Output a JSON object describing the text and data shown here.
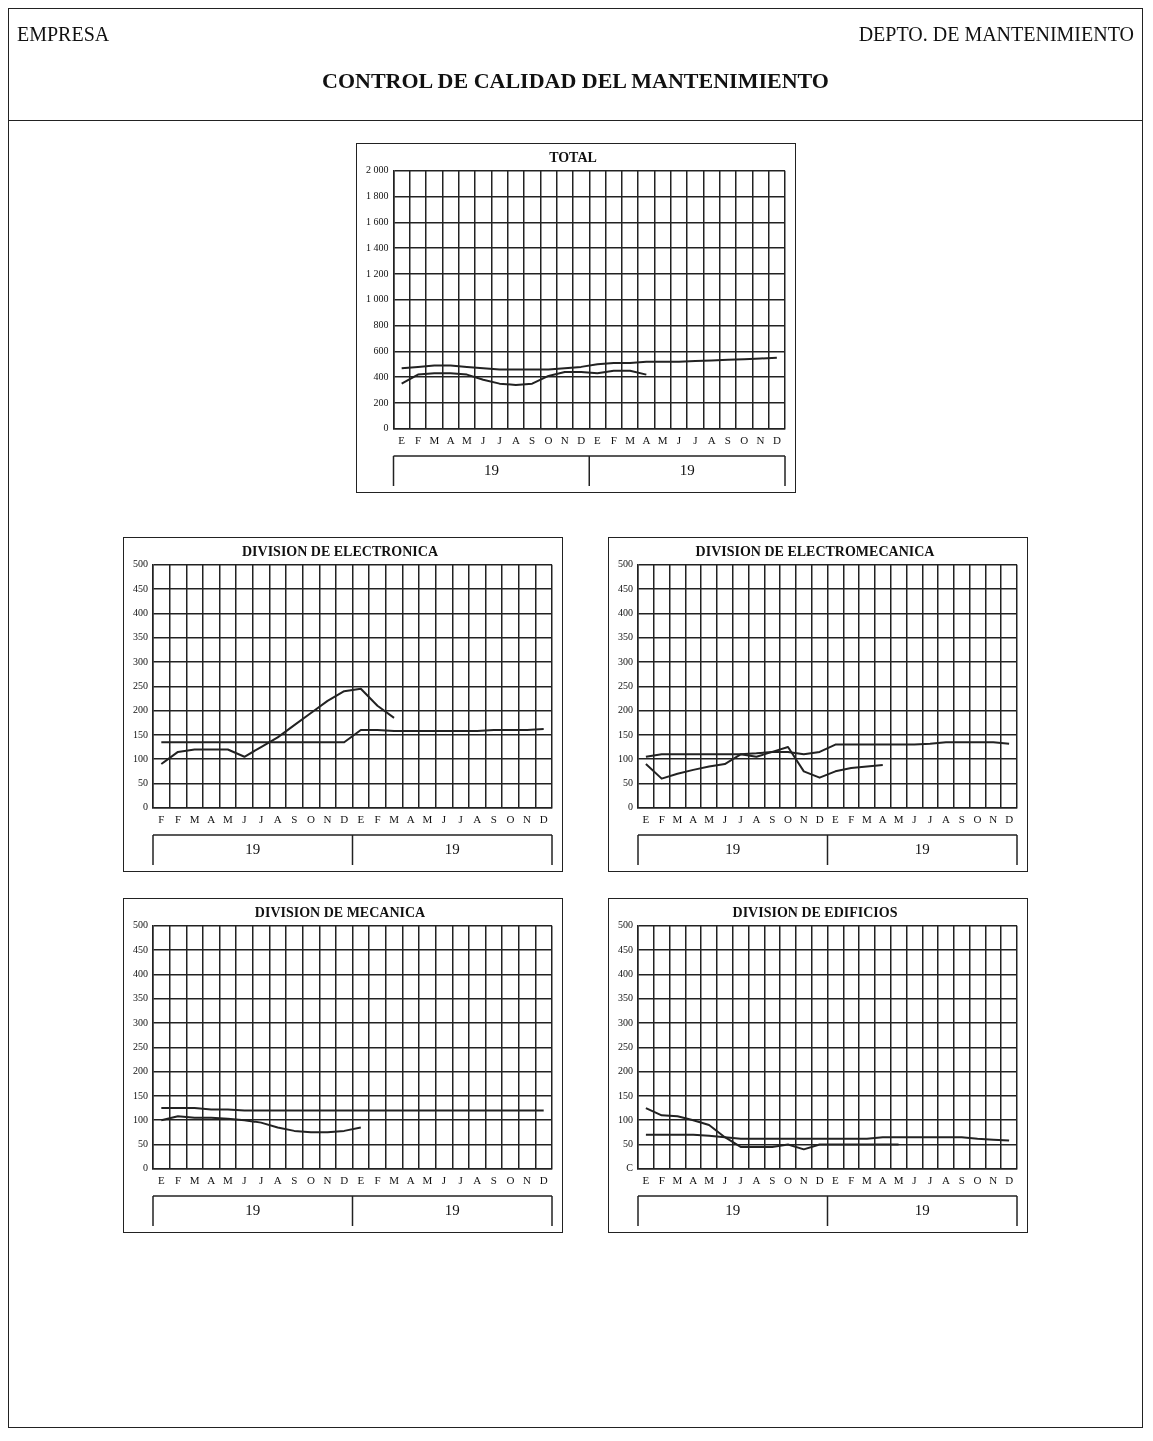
{
  "chart_data": [
    {
      "type": "other",
      "title": "CONTROL DE CALIDAD DEL MANTENIMIENTO",
      "annotations": [
        "EMPRESA",
        "DEPTO. DE MANTENIMIENTO"
      ]
    },
    {
      "type": "line",
      "title": "TOTAL",
      "categories": [
        "E",
        "F",
        "M",
        "A",
        "M",
        "J",
        "J",
        "A",
        "S",
        "O",
        "N",
        "D",
        "E",
        "F",
        "M",
        "A",
        "M",
        "J",
        "J",
        "A",
        "S",
        "O",
        "N",
        "D"
      ],
      "ylim": [
        0,
        2000
      ],
      "yticks": [
        0,
        200,
        400,
        600,
        800,
        {
          "value": 1000,
          "label": "1 000"
        },
        {
          "value": 1200,
          "label": "1 200"
        },
        {
          "value": 1400,
          "label": "1 400"
        },
        {
          "value": 1600,
          "label": "1 600"
        },
        {
          "value": 1800,
          "label": "1 800"
        },
        {
          "value": 2000,
          "label": "2 000"
        }
      ],
      "grid": true,
      "legend": false,
      "marker": "none",
      "line_style": "solid",
      "annotations": [
        "19",
        "19"
      ],
      "series": [
        {
          "color": "#222222",
          "values": [
            470,
            480,
            490,
            490,
            480,
            470,
            460,
            460,
            460,
            460,
            470,
            480,
            500,
            510,
            510,
            520,
            520,
            520,
            525,
            530,
            535,
            540,
            545,
            550
          ]
        },
        {
          "color": "#222222",
          "values": [
            350,
            420,
            430,
            430,
            420,
            380,
            350,
            340,
            350,
            410,
            440,
            440,
            430,
            450,
            450,
            420,
            null,
            null,
            null,
            null,
            null,
            null,
            null,
            null
          ]
        }
      ]
    },
    {
      "type": "line",
      "title": "DIVISION DE ELECTRONICA",
      "categories": [
        "F",
        "F",
        "M",
        "A",
        "M",
        "J",
        "J",
        "A",
        "S",
        "O",
        "N",
        "D",
        "E",
        "F",
        "M",
        "A",
        "M",
        "J",
        "J",
        "A",
        "S",
        "O",
        "N",
        "D"
      ],
      "ylim": [
        0,
        500
      ],
      "yticks": [
        0,
        50,
        100,
        150,
        200,
        250,
        300,
        350,
        400,
        450,
        500
      ],
      "grid": true,
      "legend": false,
      "marker": "none",
      "line_style": "solid",
      "annotations": [
        "19",
        "19"
      ],
      "series": [
        {
          "color": "#222222",
          "values": [
            135,
            135,
            135,
            135,
            135,
            135,
            135,
            135,
            135,
            135,
            135,
            135,
            160,
            160,
            158,
            158,
            158,
            158,
            158,
            158,
            160,
            160,
            160,
            162
          ]
        },
        {
          "color": "#222222",
          "values": [
            90,
            115,
            120,
            120,
            120,
            105,
            125,
            145,
            170,
            195,
            220,
            240,
            245,
            210,
            185,
            null,
            null,
            null,
            null,
            null,
            null,
            null,
            null,
            null
          ]
        }
      ]
    },
    {
      "type": "line",
      "title": "DIVISION DE ELECTROMECANICA",
      "categories": [
        "E",
        "F",
        "M",
        "A",
        "M",
        "J",
        "J",
        "A",
        "S",
        "O",
        "N",
        "D",
        "E",
        "F",
        "M",
        "A",
        "M",
        "J",
        "J",
        "A",
        "S",
        "O",
        "N",
        "D"
      ],
      "ylim": [
        0,
        500
      ],
      "yticks": [
        0,
        50,
        100,
        150,
        200,
        250,
        300,
        350,
        400,
        450,
        500
      ],
      "grid": true,
      "legend": false,
      "marker": "none",
      "line_style": "solid",
      "annotations": [
        "19",
        "19"
      ],
      "series": [
        {
          "color": "#222222",
          "values": [
            105,
            110,
            110,
            110,
            110,
            110,
            110,
            112,
            115,
            115,
            110,
            115,
            130,
            130,
            130,
            130,
            130,
            130,
            132,
            135,
            135,
            135,
            135,
            132
          ]
        },
        {
          "color": "#222222",
          "values": [
            90,
            60,
            70,
            78,
            85,
            90,
            110,
            105,
            115,
            125,
            75,
            62,
            75,
            82,
            85,
            88,
            null,
            null,
            null,
            null,
            null,
            null,
            null,
            null
          ]
        }
      ]
    },
    {
      "type": "line",
      "title": "DIVISION DE MECANICA",
      "categories": [
        "E",
        "F",
        "M",
        "A",
        "M",
        "J",
        "J",
        "A",
        "S",
        "O",
        "N",
        "D",
        "E",
        "F",
        "M",
        "A",
        "M",
        "J",
        "J",
        "A",
        "S",
        "O",
        "N",
        "D"
      ],
      "ylim": [
        0,
        500
      ],
      "yticks": [
        0,
        50,
        100,
        150,
        200,
        250,
        300,
        350,
        400,
        450,
        500
      ],
      "grid": true,
      "legend": false,
      "marker": "none",
      "line_style": "solid",
      "annotations": [
        "19",
        "19"
      ],
      "series": [
        {
          "color": "#222222",
          "values": [
            125,
            125,
            125,
            122,
            122,
            120,
            120,
            120,
            120,
            120,
            120,
            120,
            120,
            120,
            120,
            120,
            120,
            120,
            120,
            120,
            120,
            120,
            120,
            120
          ]
        },
        {
          "color": "#222222",
          "values": [
            100,
            108,
            105,
            105,
            103,
            100,
            95,
            85,
            78,
            75,
            75,
            78,
            85,
            null,
            null,
            null,
            null,
            null,
            null,
            null,
            null,
            null,
            null,
            null
          ]
        }
      ]
    },
    {
      "type": "line",
      "title": "DIVISION DE EDIFICIOS",
      "categories": [
        "E",
        "F",
        "M",
        "A",
        "M",
        "J",
        "J",
        "A",
        "S",
        "O",
        "N",
        "D",
        "E",
        "F",
        "M",
        "A",
        "M",
        "J",
        "J",
        "A",
        "S",
        "O",
        "N",
        "D"
      ],
      "ylim": [
        0,
        500
      ],
      "yticks": [
        {
          "value": 0,
          "label": "C"
        },
        50,
        100,
        150,
        200,
        250,
        300,
        350,
        400,
        450,
        500
      ],
      "grid": true,
      "legend": false,
      "marker": "none",
      "line_style": "solid",
      "annotations": [
        "19",
        "19"
      ],
      "series": [
        {
          "color": "#222222",
          "values": [
            70,
            70,
            70,
            70,
            68,
            65,
            62,
            62,
            62,
            62,
            62,
            62,
            62,
            62,
            62,
            65,
            65,
            65,
            65,
            65,
            65,
            62,
            60,
            58
          ]
        },
        {
          "color": "#222222",
          "values": [
            125,
            110,
            108,
            100,
            90,
            65,
            45,
            45,
            45,
            50,
            40,
            50,
            50,
            50,
            50,
            50,
            50,
            null,
            null,
            null,
            null,
            null,
            null,
            null
          ]
        }
      ]
    }
  ]
}
